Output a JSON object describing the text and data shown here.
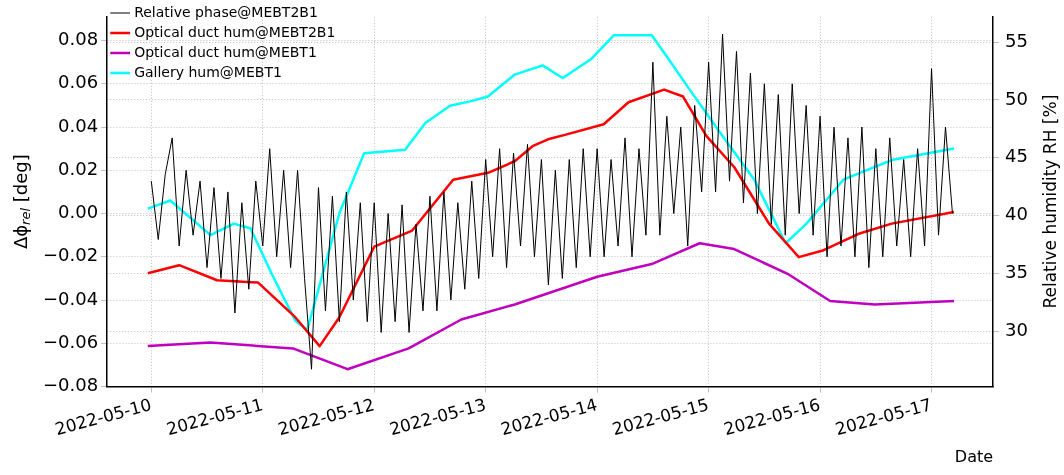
{
  "chart_data": {
    "type": "line",
    "xlabel": "Date",
    "ylabel": "Δϕ$_{rel}$ [deg]",
    "y2label": "Relative humidity RH [%]",
    "marker": "none",
    "grid": true,
    "legend": "top left",
    "xlim": [
      "2022-05-09T14:30",
      "2022-05-17T13:15"
    ],
    "xticks": [
      "2022-05-10",
      "2022-05-11",
      "2022-05-12",
      "2022-05-13",
      "2022-05-14",
      "2022-05-15",
      "2022-05-16",
      "2022-05-17"
    ],
    "ylim": [
      -0.08,
      0.091
    ],
    "yticks": [
      {
        "value": -0.08,
        "label": "−0.08"
      },
      {
        "value": -0.06,
        "label": "−0.06"
      },
      {
        "value": -0.04,
        "label": "−0.04"
      },
      {
        "value": -0.02,
        "label": "−0.02"
      },
      {
        "value": 0,
        "label": "0.00"
      },
      {
        "value": 0.02,
        "label": "0.02"
      },
      {
        "value": 0.04,
        "label": "0.04"
      },
      {
        "value": 0.06,
        "label": "0.06"
      },
      {
        "value": 0.08,
        "label": "0.08"
      }
    ],
    "y2lim": [
      25.2,
      57.2
    ],
    "y2ticks": [
      30,
      35,
      40,
      45,
      50,
      55
    ],
    "series": [
      {
        "name": "Relative phase@MEBT2B1",
        "type": "line",
        "color": "#000000",
        "x": [
          "2022-05-10T00:00",
          "2022-05-10T01:30",
          "2022-05-10T03:00",
          "2022-05-10T04:30",
          "2022-05-10T06:00",
          "2022-05-10T07:30",
          "2022-05-10T09:00",
          "2022-05-10T10:30",
          "2022-05-10T12:00",
          "2022-05-10T13:30",
          "2022-05-10T15:00",
          "2022-05-10T16:30",
          "2022-05-10T18:00",
          "2022-05-10T19:30",
          "2022-05-10T21:00",
          "2022-05-10T22:30",
          "2022-05-11T00:00",
          "2022-05-11T01:30",
          "2022-05-11T03:00",
          "2022-05-11T04:30",
          "2022-05-11T06:00",
          "2022-05-11T07:30",
          "2022-05-11T09:00",
          "2022-05-11T10:30",
          "2022-05-11T12:00",
          "2022-05-11T13:30",
          "2022-05-11T15:00",
          "2022-05-11T16:30",
          "2022-05-11T18:00",
          "2022-05-11T19:30",
          "2022-05-11T21:00",
          "2022-05-11T22:30",
          "2022-05-12T00:00",
          "2022-05-12T01:30",
          "2022-05-12T03:00",
          "2022-05-12T04:30",
          "2022-05-12T06:00",
          "2022-05-12T07:30",
          "2022-05-12T09:00",
          "2022-05-12T10:30",
          "2022-05-12T12:00",
          "2022-05-12T13:30",
          "2022-05-12T15:00",
          "2022-05-12T16:30",
          "2022-05-12T18:00",
          "2022-05-12T19:30",
          "2022-05-12T21:00",
          "2022-05-12T22:30",
          "2022-05-13T00:00",
          "2022-05-13T01:30",
          "2022-05-13T03:00",
          "2022-05-13T04:30",
          "2022-05-13T06:00",
          "2022-05-13T07:30",
          "2022-05-13T09:00",
          "2022-05-13T10:30",
          "2022-05-13T12:00",
          "2022-05-13T13:30",
          "2022-05-13T15:00",
          "2022-05-13T16:30",
          "2022-05-13T18:00",
          "2022-05-13T19:30",
          "2022-05-13T21:00",
          "2022-05-13T22:30",
          "2022-05-14T00:00",
          "2022-05-14T01:30",
          "2022-05-14T03:00",
          "2022-05-14T04:30",
          "2022-05-14T06:00",
          "2022-05-14T07:30",
          "2022-05-14T09:00",
          "2022-05-14T10:30",
          "2022-05-14T12:00",
          "2022-05-14T13:30",
          "2022-05-14T15:00",
          "2022-05-14T16:30",
          "2022-05-14T18:00",
          "2022-05-14T19:30",
          "2022-05-14T21:00",
          "2022-05-14T22:30",
          "2022-05-15T00:00",
          "2022-05-15T01:30",
          "2022-05-15T03:00",
          "2022-05-15T04:30",
          "2022-05-15T06:00",
          "2022-05-15T07:30",
          "2022-05-15T09:00",
          "2022-05-15T10:30",
          "2022-05-15T12:00",
          "2022-05-15T13:30",
          "2022-05-15T15:00",
          "2022-05-15T16:30",
          "2022-05-15T18:00",
          "2022-05-15T19:30",
          "2022-05-15T21:00",
          "2022-05-15T22:30",
          "2022-05-16T00:00",
          "2022-05-16T01:30",
          "2022-05-16T03:00",
          "2022-05-16T04:30",
          "2022-05-16T06:00",
          "2022-05-16T07:30",
          "2022-05-16T09:00",
          "2022-05-16T10:30",
          "2022-05-16T12:00",
          "2022-05-16T13:30",
          "2022-05-16T15:00",
          "2022-05-16T16:30",
          "2022-05-16T18:00",
          "2022-05-16T19:30",
          "2022-05-16T21:00",
          "2022-05-16T22:30",
          "2022-05-17T00:00",
          "2022-05-17T01:30",
          "2022-05-17T03:00",
          "2022-05-17T04:30"
        ],
        "values": [
          0.015,
          -0.012,
          0.018,
          0.035,
          -0.015,
          0.02,
          -0.01,
          0.015,
          -0.025,
          0.012,
          -0.03,
          0.01,
          -0.046,
          0.005,
          -0.035,
          0.015,
          -0.015,
          0.03,
          -0.02,
          0.02,
          -0.025,
          0.02,
          -0.03,
          -0.072,
          0.012,
          -0.045,
          0.008,
          -0.05,
          0.01,
          -0.04,
          0.005,
          -0.05,
          0.005,
          -0.055,
          0.0,
          -0.05,
          0.004,
          -0.055,
          -0.005,
          -0.045,
          0.008,
          -0.045,
          0.01,
          -0.04,
          0.005,
          -0.035,
          0.015,
          -0.03,
          0.025,
          -0.02,
          0.03,
          -0.025,
          0.028,
          -0.015,
          0.032,
          -0.02,
          0.025,
          -0.033,
          0.02,
          -0.03,
          0.025,
          -0.025,
          0.03,
          -0.02,
          0.03,
          -0.02,
          0.025,
          -0.015,
          0.035,
          -0.02,
          0.03,
          -0.01,
          0.07,
          -0.01,
          0.045,
          0.0,
          0.04,
          -0.015,
          0.05,
          0.01,
          0.07,
          0.01,
          0.083,
          0.015,
          0.075,
          0.005,
          0.065,
          0.0,
          0.06,
          -0.005,
          0.055,
          -0.01,
          0.06,
          0.0,
          0.05,
          -0.01,
          0.045,
          -0.02,
          0.04,
          -0.015,
          0.035,
          -0.02,
          0.04,
          -0.025,
          0.03,
          -0.02,
          0.035,
          -0.015,
          0.025,
          -0.02,
          0.03,
          -0.015,
          0.067,
          -0.01,
          0.04,
          0.0
        ]
      },
      {
        "name": "Optical duct hum@MEBT2B1",
        "type": "line",
        "axis": "y2",
        "color": "#ff0000",
        "x": [
          "2022-05-09T23:15",
          "2022-05-10T06:00",
          "2022-05-10T14:10",
          "2022-05-10T23:00",
          "2022-05-11T07:00",
          "2022-05-11T12:15",
          "2022-05-11T16:30",
          "2022-05-12T00:00",
          "2022-05-12T08:10",
          "2022-05-12T17:00",
          "2022-05-13T00:30",
          "2022-05-13T06:15",
          "2022-05-13T10:05",
          "2022-05-13T13:25",
          "2022-05-13T17:15",
          "2022-05-14T01:25",
          "2022-05-14T06:45",
          "2022-05-14T14:25",
          "2022-05-14T18:30",
          "2022-05-14T23:30",
          "2022-05-15T05:30",
          "2022-05-15T13:00",
          "2022-05-15T19:25",
          "2022-05-16T00:45",
          "2022-05-16T08:10",
          "2022-05-16T15:25",
          "2022-05-17T04:50"
        ],
        "values": [
          35.0,
          35.7,
          34.4,
          34.2,
          31.2,
          28.7,
          31.2,
          37.3,
          38.7,
          43.1,
          43.7,
          44.7,
          46.0,
          46.6,
          47.0,
          47.9,
          49.8,
          50.9,
          50.3,
          46.9,
          44.2,
          39.3,
          36.4,
          37.0,
          38.4,
          39.3,
          40.3
        ]
      },
      {
        "name": "Optical duct hum@MEBT1",
        "type": "line",
        "axis": "y2",
        "color": "#bf00bf",
        "x": [
          "2022-05-09T23:15",
          "2022-05-10T12:45",
          "2022-05-11T06:30",
          "2022-05-11T18:15",
          "2022-05-12T07:25",
          "2022-05-12T18:45",
          "2022-05-13T06:15",
          "2022-05-14T00:00",
          "2022-05-14T11:45",
          "2022-05-14T22:05",
          "2022-05-15T05:30",
          "2022-05-15T17:15",
          "2022-05-16T02:10",
          "2022-05-16T11:45",
          "2022-05-17T04:50"
        ],
        "values": [
          28.7,
          29.0,
          28.5,
          26.7,
          28.5,
          31.0,
          32.3,
          34.7,
          35.8,
          37.6,
          37.1,
          34.9,
          32.6,
          32.3,
          32.6
        ]
      },
      {
        "name": "Gallery hum@MEBT1",
        "type": "line",
        "axis": "y2",
        "color": "#00ffff",
        "x": [
          "2022-05-09T23:15",
          "2022-05-10T04:05",
          "2022-05-10T12:45",
          "2022-05-10T17:45",
          "2022-05-10T21:20",
          "2022-05-11T02:00",
          "2022-05-11T07:00",
          "2022-05-11T09:35",
          "2022-05-11T16:30",
          "2022-05-11T21:50",
          "2022-05-12T06:40",
          "2022-05-12T11:00",
          "2022-05-12T16:20",
          "2022-05-12T20:50",
          "2022-05-13T00:30",
          "2022-05-13T06:15",
          "2022-05-13T12:15",
          "2022-05-13T16:35",
          "2022-05-13T22:35",
          "2022-05-14T03:35",
          "2022-05-14T11:45",
          "2022-05-14T14:55",
          "2022-05-14T19:55",
          "2022-05-15T02:25",
          "2022-05-15T09:50",
          "2022-05-15T16:35",
          "2022-05-15T21:05",
          "2022-05-16T05:00",
          "2022-05-16T15:25",
          "2022-05-17T04:50"
        ],
        "values": [
          40.6,
          41.3,
          38.3,
          39.3,
          38.9,
          34.9,
          30.9,
          30.1,
          40.2,
          45.4,
          45.7,
          48.0,
          49.5,
          49.9,
          50.3,
          52.2,
          53.0,
          51.9,
          53.5,
          55.6,
          55.6,
          53.8,
          50.9,
          47.2,
          43.1,
          37.6,
          39.3,
          43.1,
          44.8,
          45.8
        ]
      }
    ]
  }
}
